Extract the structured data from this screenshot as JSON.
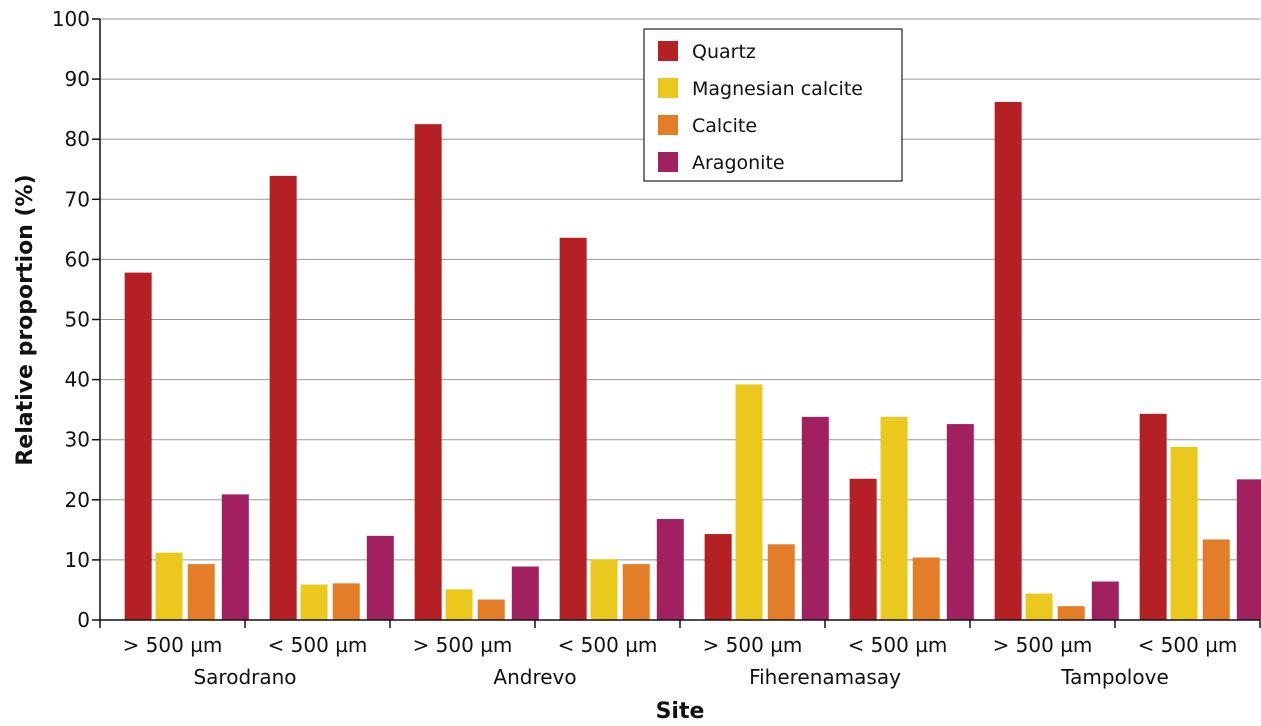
{
  "chart_data": {
    "type": "bar",
    "title": "",
    "xlabel": "Site",
    "ylabel": "Relative proportion (%)",
    "ylim": [
      0,
      100
    ],
    "yticks": [
      0,
      10,
      20,
      30,
      40,
      50,
      60,
      70,
      80,
      90,
      100
    ],
    "grid": "horizontal",
    "legend_position": "top-center",
    "groups": [
      "Sarodrano",
      "Andrevo",
      "Fiherenamasay",
      "Tampolove"
    ],
    "categories": [
      "> 500 µm",
      "< 500 µm",
      "> 500 µm",
      "< 500 µm",
      "> 500 µm",
      "< 500 µm",
      "> 500 µm",
      "< 500 µm"
    ],
    "series": [
      {
        "name": "Quartz",
        "color": "#b52025",
        "values": [
          57.8,
          73.9,
          82.5,
          63.6,
          14.3,
          23.5,
          86.2,
          34.3
        ]
      },
      {
        "name": "Magnesian calcite",
        "color": "#eac81e",
        "values": [
          11.2,
          5.9,
          5.1,
          10.1,
          39.2,
          33.8,
          4.4,
          28.8
        ]
      },
      {
        "name": "Calcite",
        "color": "#e47d27",
        "values": [
          9.3,
          6.1,
          3.4,
          9.3,
          12.6,
          10.4,
          2.3,
          13.4
        ]
      },
      {
        "name": "Aragonite",
        "color": "#a1205f",
        "values": [
          20.9,
          14.0,
          8.9,
          16.8,
          33.8,
          32.6,
          6.4,
          23.4
        ]
      }
    ]
  }
}
